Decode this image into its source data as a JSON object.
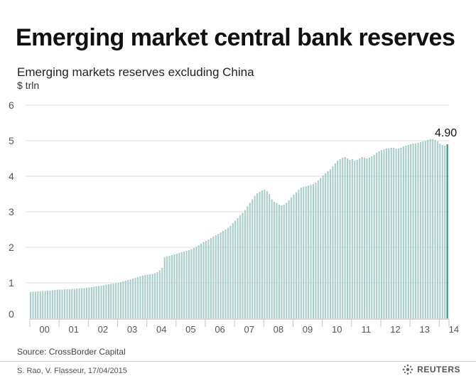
{
  "title": "Emerging market central bank reserves",
  "subtitle": "Emerging markets reserves excluding China",
  "unit": "$ trln",
  "source": "Source:  CrossBorder Capital",
  "credit": "S. Rao, V. Flasseur, 17/04/2015",
  "brand": {
    "name": "REUTERS",
    "logo_icon": "reuters-dots-logo-icon"
  },
  "colors": {
    "bars": "#a8cfc9",
    "bar_highlight": "#1f9a8a",
    "grid": "#dedede",
    "axis": "#c8c8c8"
  },
  "chart_data": {
    "type": "bar",
    "title": "Emerging market central bank reserves",
    "subtitle": "Emerging markets reserves excluding China",
    "ylabel": "$ trln",
    "ylim": [
      0,
      6
    ],
    "yticks": [
      0,
      1,
      2,
      3,
      4,
      5,
      6
    ],
    "x_tick_labels": [
      "00",
      "01",
      "02",
      "03",
      "04",
      "05",
      "06",
      "07",
      "08",
      "09",
      "10",
      "11",
      "12",
      "13",
      "14"
    ],
    "frequency": "monthly",
    "grid": true,
    "highlight_last": true,
    "last_label": "4.90",
    "series": [
      {
        "values": [
          0.74,
          0.75,
          0.75,
          0.76,
          0.76,
          0.77,
          0.77,
          0.78,
          0.78,
          0.79,
          0.8,
          0.81,
          0.81,
          0.81,
          0.82,
          0.82,
          0.82,
          0.83,
          0.83,
          0.84,
          0.84,
          0.85,
          0.85,
          0.86,
          0.87,
          0.88,
          0.89,
          0.9,
          0.91,
          0.92,
          0.93,
          0.95,
          0.96,
          0.97,
          0.98,
          0.99,
          1.0,
          1.02,
          1.04,
          1.06,
          1.08,
          1.1,
          1.12,
          1.14,
          1.16,
          1.18,
          1.2,
          1.22,
          1.23,
          1.24,
          1.25,
          1.27,
          1.3,
          1.35,
          1.42,
          1.72,
          1.74,
          1.76,
          1.78,
          1.8,
          1.82,
          1.84,
          1.86,
          1.88,
          1.9,
          1.92,
          1.95,
          1.98,
          2.02,
          2.06,
          2.1,
          2.15,
          2.18,
          2.22,
          2.26,
          2.3,
          2.34,
          2.38,
          2.42,
          2.46,
          2.5,
          2.55,
          2.6,
          2.68,
          2.75,
          2.82,
          2.9,
          2.97,
          3.05,
          3.15,
          3.25,
          3.35,
          3.45,
          3.52,
          3.56,
          3.6,
          3.62,
          3.58,
          3.5,
          3.35,
          3.28,
          3.25,
          3.2,
          3.18,
          3.2,
          3.25,
          3.32,
          3.4,
          3.48,
          3.55,
          3.62,
          3.68,
          3.7,
          3.72,
          3.74,
          3.76,
          3.78,
          3.82,
          3.88,
          3.95,
          4.02,
          4.08,
          4.14,
          4.2,
          4.28,
          4.36,
          4.44,
          4.48,
          4.52,
          4.54,
          4.5,
          4.46,
          4.48,
          4.44,
          4.46,
          4.5,
          4.54,
          4.52,
          4.5,
          4.52,
          4.56,
          4.6,
          4.66,
          4.7,
          4.74,
          4.76,
          4.78,
          4.78,
          4.8,
          4.8,
          4.78,
          4.78,
          4.8,
          4.84,
          4.86,
          4.88,
          4.9,
          4.92,
          4.92,
          4.94,
          4.96,
          4.98,
          5.0,
          5.02,
          5.04,
          5.04,
          5.02,
          4.98,
          4.92,
          4.88,
          4.86,
          4.9
        ]
      }
    ]
  }
}
